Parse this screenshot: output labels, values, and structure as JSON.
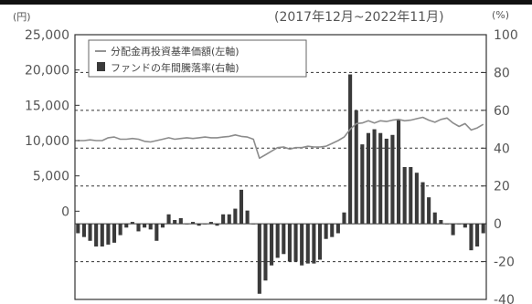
{
  "chart_data": {
    "type": "bar",
    "period_label": "(2017年12月~2022年11月)",
    "left_unit": "(円)",
    "right_unit": "(%)",
    "left_axis": {
      "ticks": [
        "25,000",
        "20,000",
        "15,000",
        "10,000",
        "5,000",
        "0"
      ],
      "ylim": [
        -12500,
        25000
      ]
    },
    "right_axis": {
      "ticks": [
        "100",
        "80",
        "60",
        "40",
        "20",
        "0",
        "-20",
        "-40"
      ],
      "ylim": [
        -40,
        100
      ]
    },
    "grid": "dashed at right-axis 80, 60, 40, 20, -20",
    "legend_position": "top-left",
    "legend": {
      "line_label": "分配金再投資基準価額(左軸)",
      "bar_label": "ファンドの年間騰落率(右軸)"
    },
    "series": [
      {
        "name": "ファンドの年間騰落率(右軸)",
        "type": "bar",
        "axis": "right",
        "values": [
          -5,
          -7,
          -9,
          -12,
          -12,
          -11,
          -10,
          -6,
          -2,
          1,
          -4,
          -2,
          -3,
          -9,
          -2,
          5,
          2,
          3,
          0,
          1,
          -1,
          0,
          1,
          -1,
          5,
          5,
          8,
          18,
          7,
          0,
          -37,
          -30,
          -22,
          -18,
          -16,
          -20,
          -20,
          -22,
          -21,
          -21,
          -19,
          -8,
          -7,
          -5,
          6,
          79,
          60,
          42,
          48,
          50,
          48,
          45,
          47,
          55,
          30,
          30,
          27,
          22,
          14,
          6,
          2,
          0,
          -6,
          0,
          -2,
          -14,
          -12,
          -5
        ]
      },
      {
        "name": "分配金再投資基準価額(左軸)",
        "type": "line",
        "axis": "left",
        "values": [
          10000,
          10000,
          10100,
          10000,
          10000,
          10400,
          10500,
          10200,
          10200,
          10300,
          10200,
          9900,
          9800,
          10000,
          10200,
          10400,
          10200,
          10300,
          10400,
          10300,
          10400,
          10500,
          10400,
          10400,
          10500,
          10600,
          10800,
          10600,
          10500,
          10200,
          7500,
          8000,
          8500,
          9000,
          9100,
          8800,
          9000,
          9000,
          9200,
          9100,
          9100,
          9200,
          9600,
          10000,
          10500,
          11600,
          12400,
          12500,
          12800,
          12500,
          12800,
          12700,
          12900,
          13000,
          12800,
          12900,
          13100,
          13300,
          12900,
          12600,
          13000,
          13200,
          12500,
          12000,
          12400,
          11500,
          11800,
          12300
        ]
      }
    ]
  }
}
